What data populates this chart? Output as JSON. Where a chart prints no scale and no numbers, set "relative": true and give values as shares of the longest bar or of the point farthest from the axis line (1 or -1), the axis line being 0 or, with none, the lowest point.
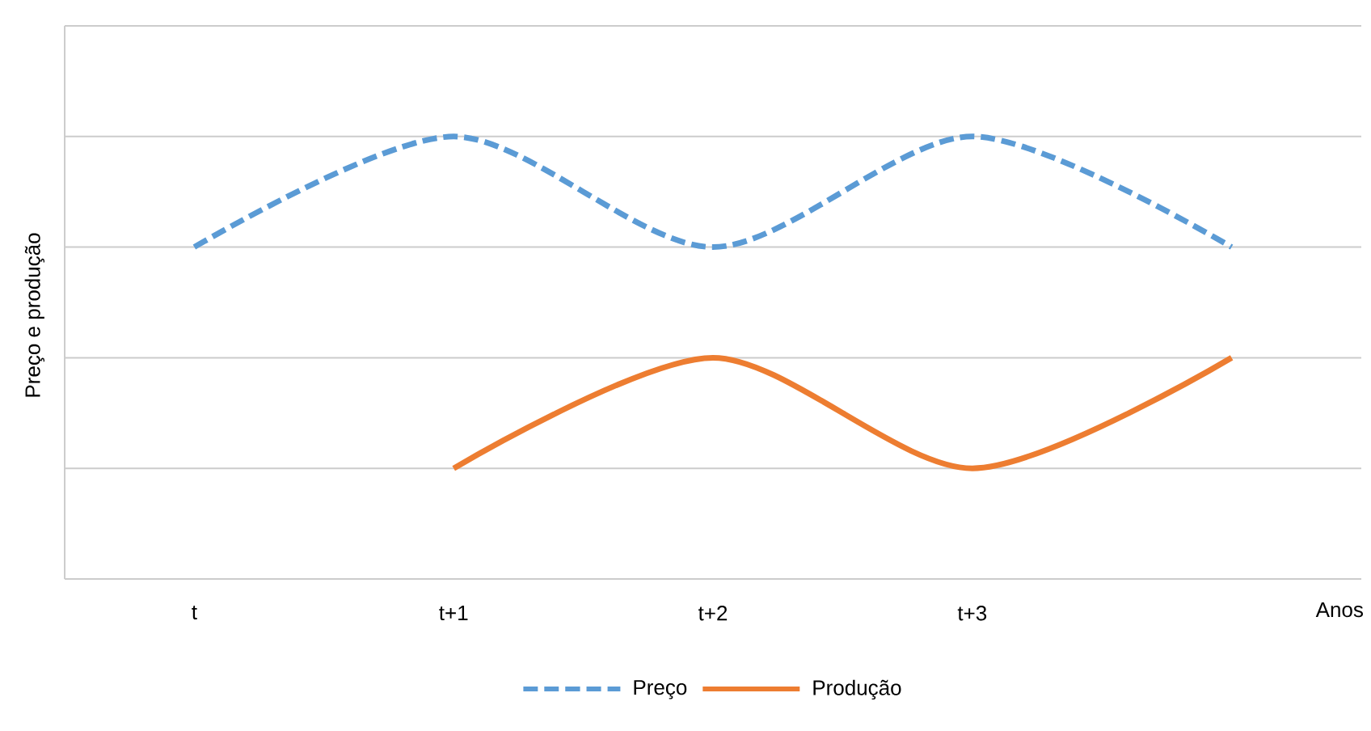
{
  "chart_data": {
    "type": "line",
    "relative": true,
    "xlabel": "Anos",
    "ylabel": "Preço e produção",
    "categories": [
      "t",
      "t+1",
      "t+2",
      "t+3",
      null
    ],
    "series": [
      {
        "name": "Preço",
        "color": "#5b9bd5",
        "line_style": "dashed",
        "values": [
          0.75,
          1,
          0.75,
          1,
          0.75
        ]
      },
      {
        "name": "Produção",
        "color": "#ed7d31",
        "line_style": "solid",
        "values": [
          null,
          0.25,
          0.5,
          0.25,
          0.5
        ]
      }
    ],
    "grid": "y",
    "legend": "bottom",
    "marker": "none"
  }
}
